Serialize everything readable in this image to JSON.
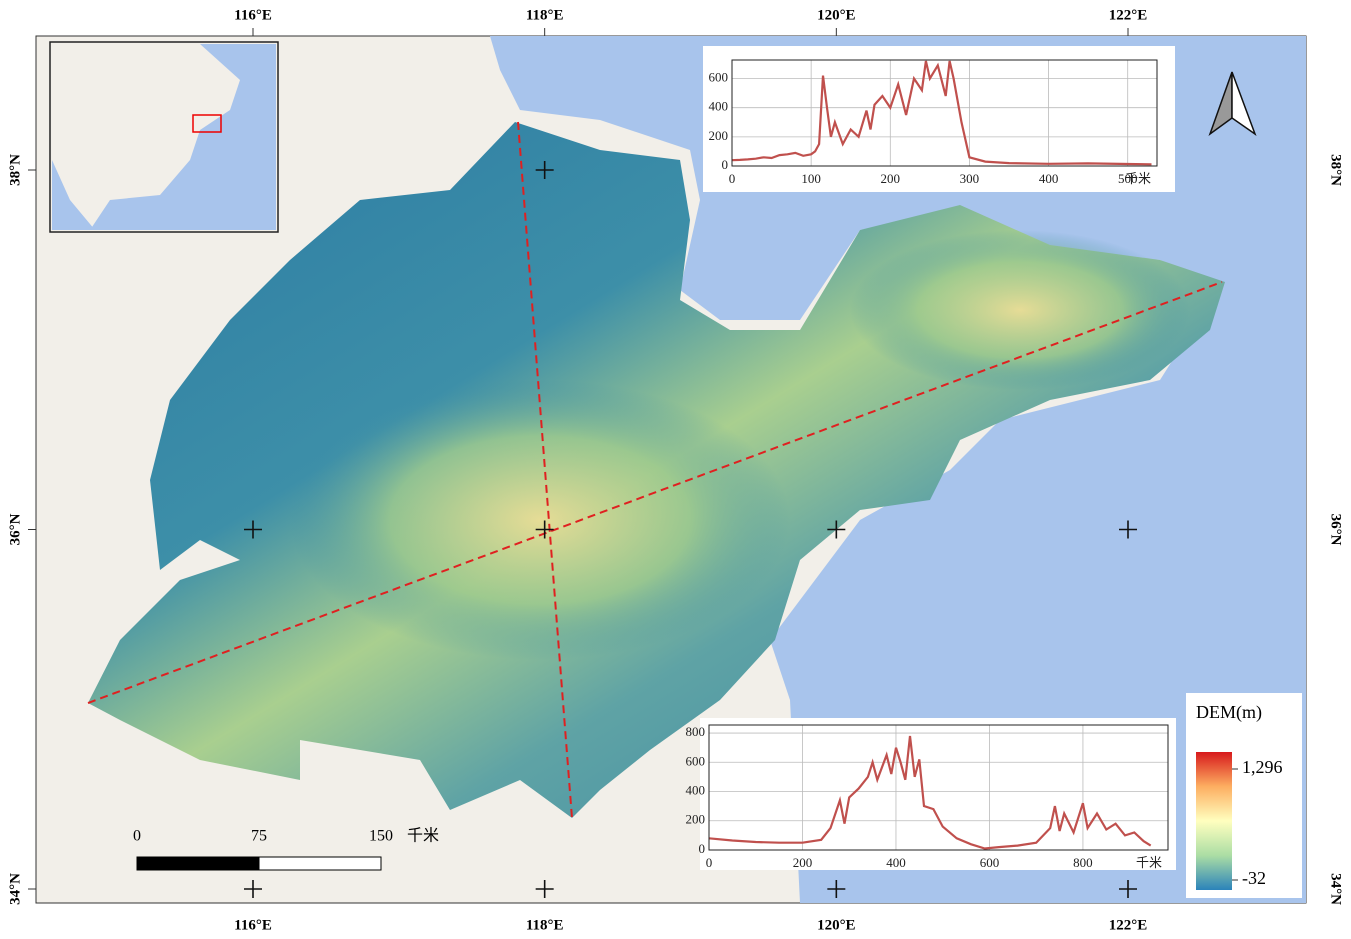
{
  "map": {
    "lon_ticks": [
      {
        "value": 116,
        "label": "116°E"
      },
      {
        "value": 118,
        "label": "118°E"
      },
      {
        "value": 120,
        "label": "120°E"
      },
      {
        "value": 122,
        "label": "122°E"
      }
    ],
    "lat_ticks": [
      {
        "value": 38,
        "label": "38°N"
      },
      {
        "value": 36,
        "label": "36°N"
      },
      {
        "value": 34,
        "label": "34°N"
      }
    ],
    "scale_bar": {
      "ticks": [
        0,
        75,
        150
      ],
      "unit": "千米"
    },
    "legend": {
      "title": "DEM(m)",
      "max": {
        "value": 1296,
        "label": "1,296"
      },
      "min": -32,
      "colors": [
        "#d7191c",
        "#fdae61",
        "#ffffbf",
        "#abdda4",
        "#2b83ba"
      ]
    }
  },
  "chart_data": [
    {
      "type": "line",
      "x_label": "千米",
      "color": "#c0504d",
      "grid": true,
      "x": [
        0,
        10,
        20,
        30,
        40,
        50,
        60,
        70,
        80,
        90,
        100,
        105,
        110,
        115,
        120,
        125,
        130,
        140,
        150,
        160,
        170,
        175,
        180,
        190,
        200,
        210,
        220,
        230,
        240,
        245,
        250,
        260,
        270,
        275,
        280,
        290,
        300,
        320,
        350,
        400,
        450,
        500,
        530
      ],
      "values": [
        40,
        42,
        45,
        50,
        60,
        55,
        75,
        80,
        90,
        70,
        80,
        100,
        150,
        620,
        400,
        200,
        300,
        150,
        250,
        200,
        380,
        250,
        420,
        480,
        400,
        560,
        350,
        600,
        520,
        720,
        600,
        690,
        480,
        720,
        600,
        300,
        60,
        30,
        20,
        15,
        18,
        14,
        12
      ],
      "xlim": [
        0,
        537
      ],
      "ylim": [
        0,
        727
      ],
      "xticks": [
        0,
        100,
        200,
        300,
        400,
        500
      ],
      "yticks": [
        0,
        200,
        400,
        600
      ]
    },
    {
      "type": "line",
      "x_label": "千米",
      "color": "#c0504d",
      "grid": true,
      "x": [
        0,
        50,
        100,
        150,
        200,
        240,
        260,
        280,
        290,
        300,
        320,
        340,
        350,
        360,
        380,
        390,
        400,
        410,
        420,
        430,
        440,
        450,
        460,
        480,
        500,
        530,
        560,
        590,
        620,
        660,
        700,
        730,
        740,
        750,
        760,
        780,
        800,
        810,
        830,
        850,
        870,
        890,
        910,
        930,
        945
      ],
      "values": [
        80,
        65,
        55,
        50,
        50,
        70,
        150,
        340,
        180,
        360,
        420,
        500,
        600,
        480,
        650,
        520,
        700,
        600,
        480,
        780,
        500,
        620,
        300,
        280,
        160,
        80,
        40,
        10,
        20,
        30,
        50,
        150,
        300,
        130,
        250,
        120,
        320,
        150,
        250,
        140,
        180,
        100,
        120,
        60,
        30
      ],
      "xlim": [
        0,
        982
      ],
      "ylim": [
        0,
        855
      ],
      "xticks": [
        0,
        200,
        400,
        600,
        800
      ],
      "yticks": [
        0,
        200,
        400,
        600,
        800
      ]
    }
  ]
}
